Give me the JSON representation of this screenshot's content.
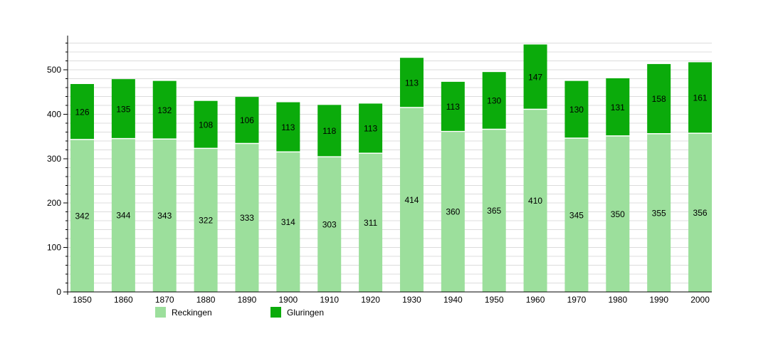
{
  "chart_data": {
    "type": "bar",
    "stacked": true,
    "title": "",
    "xlabel": "",
    "ylabel": "",
    "categories": [
      "1850",
      "1860",
      "1870",
      "1880",
      "1890",
      "1900",
      "1910",
      "1920",
      "1930",
      "1940",
      "1950",
      "1960",
      "1970",
      "1980",
      "1990",
      "2000"
    ],
    "series": [
      {
        "name": "Reckingen",
        "color": "#9cdf9c",
        "values": [
          342,
          344,
          343,
          322,
          333,
          314,
          303,
          311,
          414,
          360,
          365,
          410,
          345,
          350,
          355,
          356
        ]
      },
      {
        "name": "Gluringen",
        "color": "#0bab0b",
        "values": [
          126,
          135,
          132,
          108,
          106,
          113,
          118,
          113,
          113,
          113,
          130,
          147,
          130,
          131,
          158,
          161
        ]
      }
    ],
    "ylim": [
      0,
      577
    ],
    "y_major_ticks": [
      0,
      100,
      200,
      300,
      400,
      500
    ],
    "grid_interval": 20,
    "grid": true,
    "legend_position": "bottom",
    "colors": {
      "grid": "#dcdcdc",
      "axis": "#000000",
      "label_text": "#000000",
      "background": "#ffffff"
    }
  }
}
